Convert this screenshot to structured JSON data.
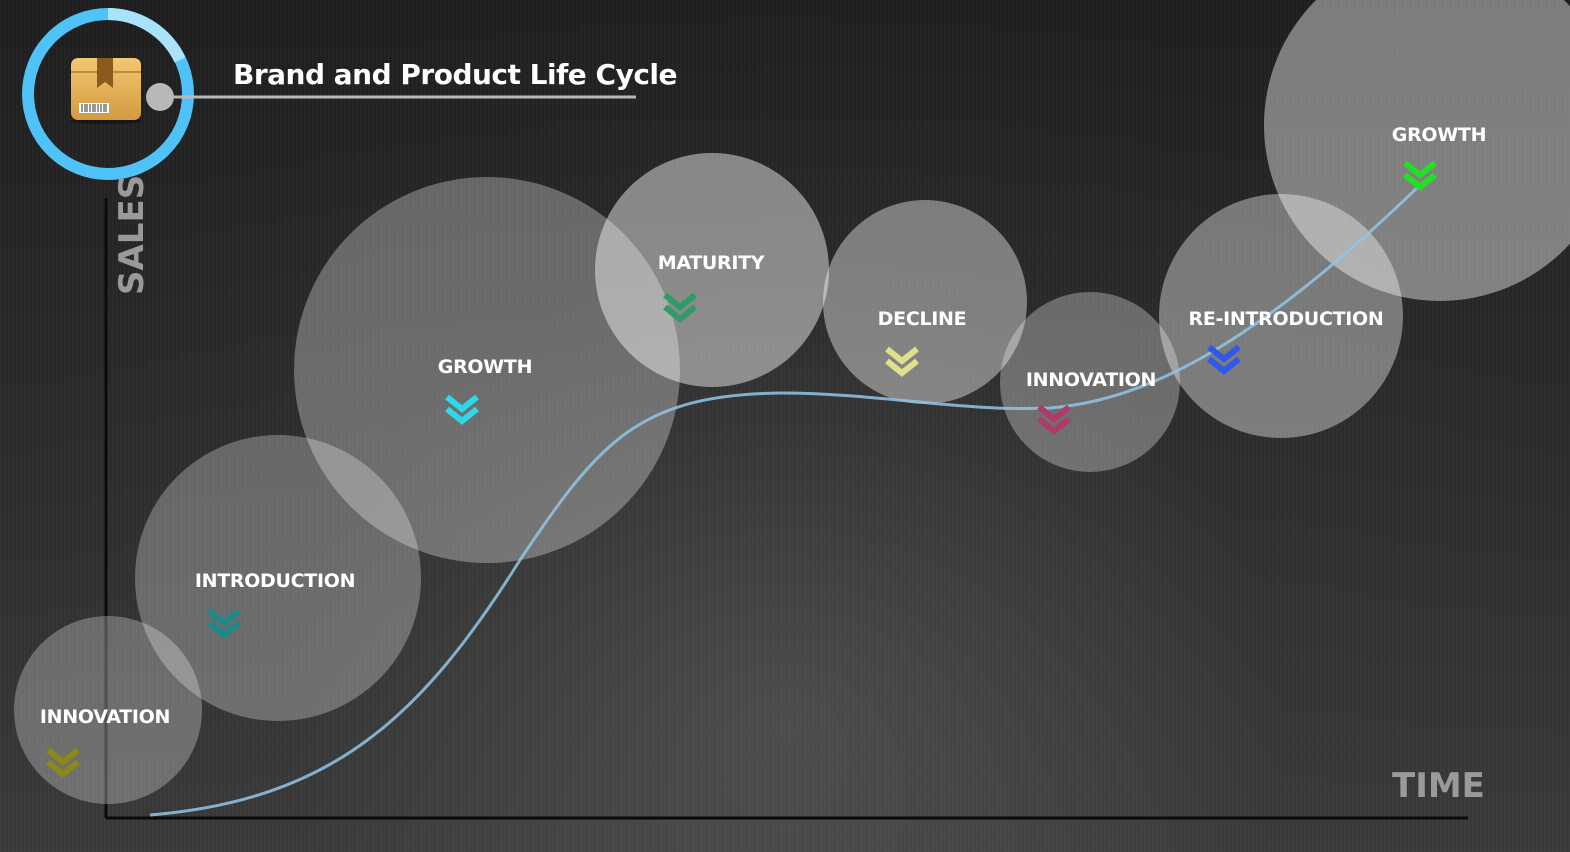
{
  "title": "Brand and Product Life Cycle",
  "logo_icon": "package-box-icon",
  "axes": {
    "y_label": "SALES",
    "x_label": "TIME"
  },
  "stages": [
    {
      "label": "INNOVATION",
      "chevron_color": "#8a8a1a"
    },
    {
      "label": "INTRODUCTION",
      "chevron_color": "#1d8a8a"
    },
    {
      "label": "GROWTH",
      "chevron_color": "#2fd8e8"
    },
    {
      "label": "MATURITY",
      "chevron_color": "#2f9a6a"
    },
    {
      "label": "DECLINE",
      "chevron_color": "#e0e08a"
    },
    {
      "label": "INNOVATION",
      "chevron_color": "#b03a6a"
    },
    {
      "label": "RE-INTRODUCTION",
      "chevron_color": "#2f5ae8"
    },
    {
      "label": "GROWTH",
      "chevron_color": "#22e022"
    }
  ],
  "colors": {
    "ring": "#4fc3f7",
    "curve": "#8fc6e8",
    "bubble": "#ffffff"
  }
}
